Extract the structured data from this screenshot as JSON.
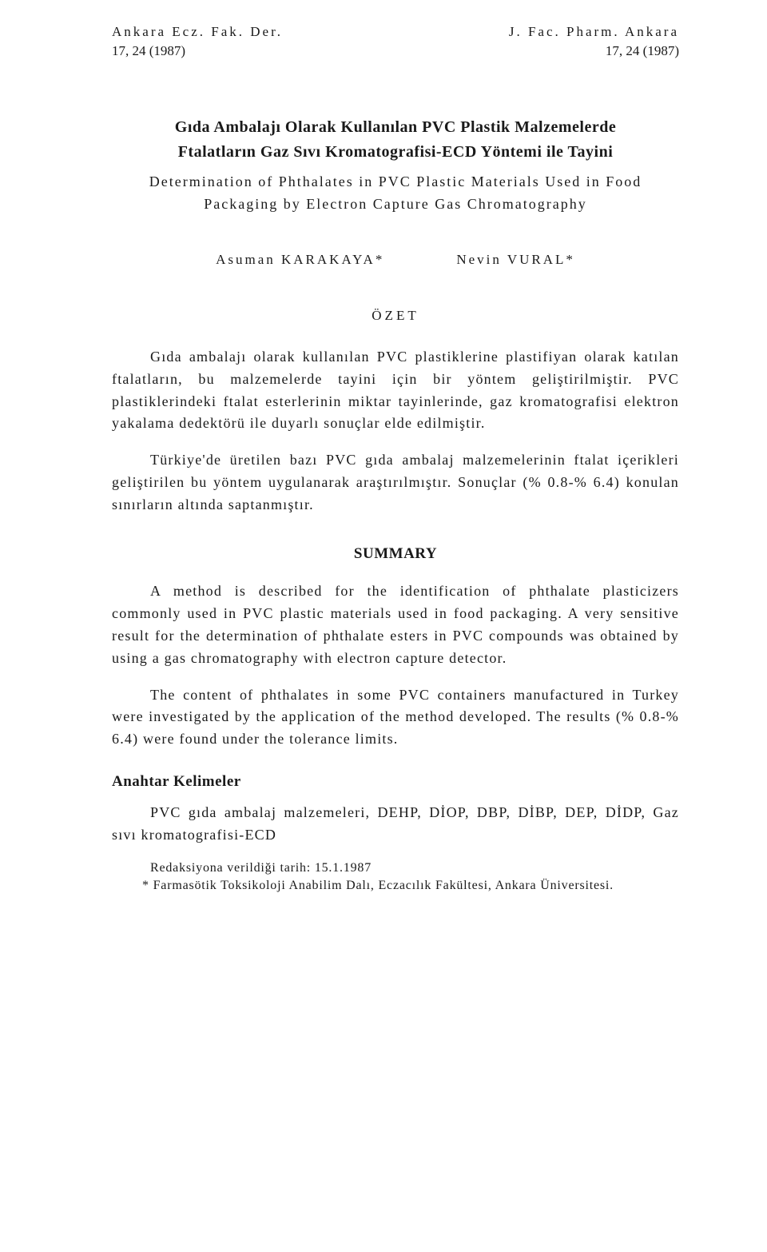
{
  "header": {
    "left_top": "Ankara Ecz. Fak. Der.",
    "right_top": "J. Fac. Pharm. Ankara",
    "left_sub": "17, 24 (1987)",
    "right_sub": "17, 24 (1987)"
  },
  "title_line1": "Gıda Ambalajı Olarak Kullanılan PVC Plastik Malzemelerde",
  "title_line2": "Ftalatların Gaz Sıvı Kromatografisi-ECD Yöntemi ile Tayini",
  "subtitle_line1": "Determination of Phthalates in PVC Plastic Materials Used in Food",
  "subtitle_line2": "Packaging by Electron Capture Gas Chromatography",
  "authors": {
    "a1": "Asuman KARAKAYA*",
    "a2": "Nevin VURAL*"
  },
  "ozet_heading": "ÖZET",
  "ozet_p1": "Gıda ambalajı olarak kullanılan PVC plastiklerine plastifiyan olarak katılan ftalatların, bu malzemelerde tayini için bir yöntem geliştirilmiştir. PVC plastiklerindeki ftalat esterlerinin miktar tayinlerinde, gaz kromatografisi elektron yakalama dedektörü ile duyarlı sonuçlar elde edilmiştir.",
  "ozet_p2": "Türkiye'de üretilen bazı PVC gıda ambalaj malzemelerinin ftalat içerikleri geliştirilen bu yöntem uygulanarak araştırılmıştır. Sonuçlar (% 0.8-% 6.4) konulan sınırların altında saptanmıştır.",
  "summary_heading": "SUMMARY",
  "summary_p1": "A method is described for the identification of phthalate plasticizers commonly used in PVC plastic materials used in food packaging. A very sensitive result for the determination of phthalate esters in PVC compounds was obtained by using a gas chromatography with electron capture detector.",
  "summary_p2": "The content of phthalates in some PVC containers manufactured in Turkey were investigated by the application of the method developed. The results (% 0.8-% 6.4) were found under the tolerance limits.",
  "keywords_heading": "Anahtar Kelimeler",
  "keywords_text": "PVC gıda ambalaj malzemeleri, DEHP, DİOP, DBP, DİBP, DEP, DİDP, Gaz sıvı kromatografisi-ECD",
  "footer": {
    "received": "Redaksiyona verildiği tarih: 15.1.1987",
    "affiliation": "* Farmasötik Toksikoloji Anabilim Dalı, Eczacılık Fakültesi, Ankara Üniversitesi."
  }
}
